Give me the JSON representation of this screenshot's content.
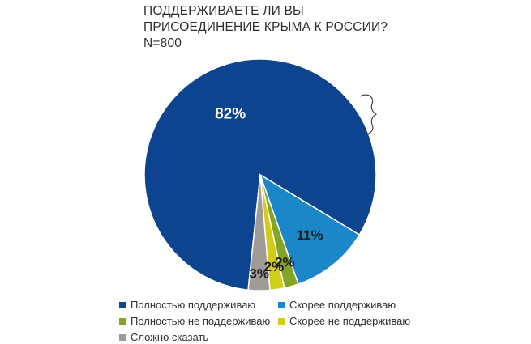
{
  "title_lines": [
    "ПОДДЕРЖИВАЕТЕ ЛИ ВЫ",
    "ПРИСОЕДИНЕНИЕ КРЫМА К РОССИИ?",
    "N=800"
  ],
  "chart_data": {
    "type": "pie",
    "title": "ПОДДЕРЖИВАЕТЕ ЛИ ВЫ ПРИСОЕДИНЕНИЕ КРЫМА К РОССИИ? N=800",
    "unit": "%",
    "slices": [
      {
        "name": "Полностью поддерживаю",
        "value": 82,
        "label": "82%",
        "color": "#0d4490",
        "label_color": "#ffffff"
      },
      {
        "name": "Скорее поддерживаю",
        "value": 11,
        "label": "11%",
        "color": "#1b87c8",
        "label_color": "#1d1d1d"
      },
      {
        "name": "Полностью не поддерживаю",
        "value": 2,
        "label": "2%",
        "color": "#84a423",
        "label_color": "#1d1d1d"
      },
      {
        "name": "Скорее не поддерживаю",
        "value": 2,
        "label": "2%",
        "color": "#d2cc16",
        "label_color": "#1d1d1d"
      },
      {
        "name": "Сложно сказать",
        "value": 3,
        "label": "3%",
        "color": "#a19b98",
        "label_color": "#1d1d1d"
      }
    ],
    "legend": {
      "position": "bottom",
      "order": [
        0,
        1,
        2,
        3,
        4
      ]
    }
  }
}
